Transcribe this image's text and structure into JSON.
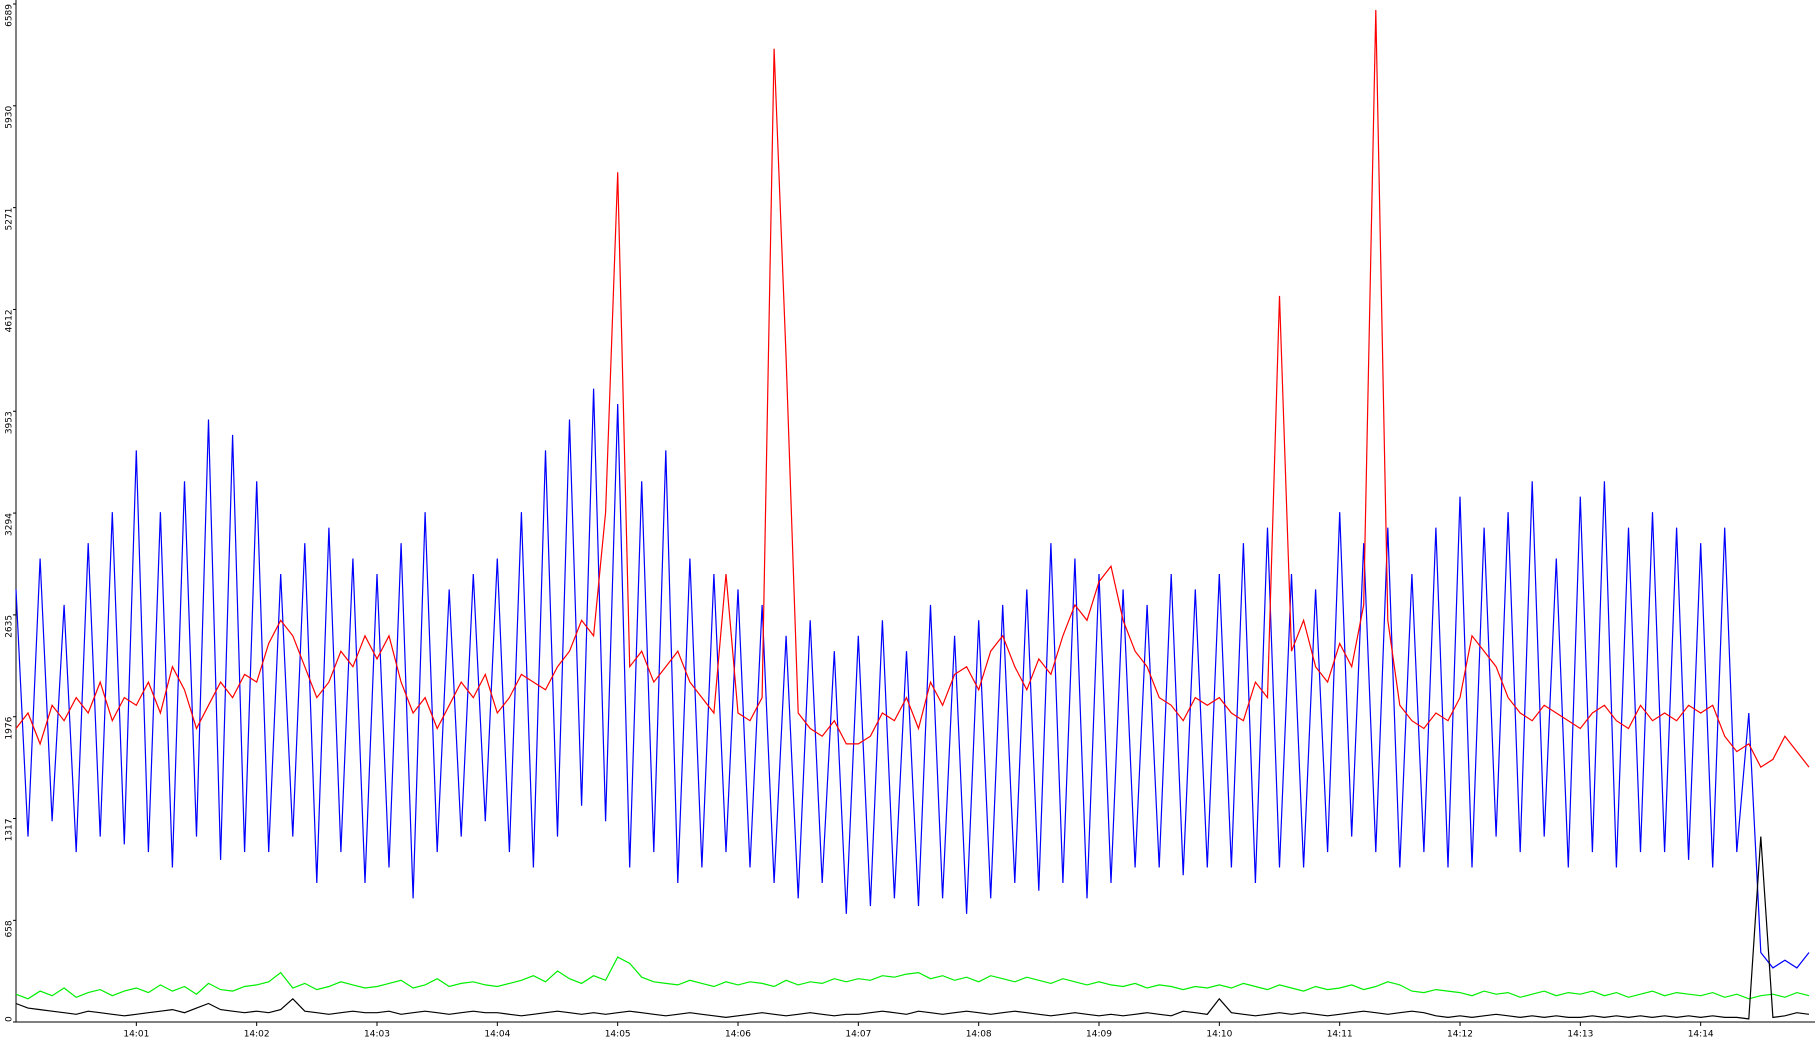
{
  "chart_data": {
    "type": "line",
    "x": [
      0,
      0.1,
      0.2,
      0.3,
      0.4,
      0.5,
      0.6,
      0.7,
      0.8,
      0.9,
      1,
      1.1,
      1.2,
      1.3,
      1.4,
      1.5,
      1.6,
      1.7,
      1.8,
      1.9,
      2,
      2.1,
      2.2,
      2.3,
      2.4,
      2.5,
      2.6,
      2.7,
      2.8,
      2.9,
      3,
      3.1,
      3.2,
      3.3,
      3.4,
      3.5,
      3.6,
      3.7,
      3.8,
      3.9,
      4,
      4.1,
      4.2,
      4.3,
      4.4,
      4.5,
      4.6,
      4.7,
      4.8,
      4.9,
      5,
      5.1,
      5.2,
      5.3,
      5.4,
      5.5,
      5.6,
      5.7,
      5.8,
      5.9,
      6,
      6.1,
      6.2,
      6.3,
      6.4,
      6.5,
      6.6,
      6.7,
      6.8,
      6.9,
      7,
      7.1,
      7.2,
      7.3,
      7.4,
      7.5,
      7.6,
      7.7,
      7.8,
      7.9,
      8,
      8.1,
      8.2,
      8.3,
      8.4,
      8.5,
      8.6,
      8.7,
      8.8,
      8.9,
      9,
      9.1,
      9.2,
      9.3,
      9.4,
      9.5,
      9.6,
      9.7,
      9.8,
      9.9,
      10,
      10.1,
      10.2,
      10.3,
      10.4,
      10.5,
      10.6,
      10.7,
      10.8,
      10.9,
      11,
      11.1,
      11.2,
      11.3,
      11.4,
      11.5,
      11.6,
      11.7,
      11.8,
      11.9,
      12,
      12.1,
      12.2,
      12.3,
      12.4,
      12.5,
      12.6,
      12.7,
      12.8,
      12.9,
      13,
      13.1,
      13.2,
      13.3,
      13.4,
      13.5,
      13.6,
      13.7,
      13.8,
      13.9,
      14,
      14.1,
      14.2,
      14.3,
      14.4,
      14.5,
      14.6,
      14.7,
      14.8,
      14.9
    ],
    "series": [
      {
        "color": "#0000ff",
        "values": [
          2800,
          1200,
          3000,
          1300,
          2700,
          1100,
          3100,
          1200,
          3300,
          1150,
          3700,
          1100,
          3300,
          1000,
          3500,
          1200,
          3900,
          1050,
          3800,
          1100,
          3500,
          1100,
          2900,
          1200,
          3100,
          900,
          3200,
          1100,
          3000,
          900,
          2900,
          1000,
          3100,
          800,
          3300,
          1100,
          2800,
          1200,
          2900,
          1300,
          3000,
          1100,
          3300,
          1000,
          3700,
          1200,
          3900,
          1400,
          4100,
          1300,
          4000,
          1000,
          3500,
          1100,
          3700,
          900,
          3000,
          1000,
          2900,
          1100,
          2800,
          1000,
          2700,
          900,
          2500,
          800,
          2600,
          900,
          2400,
          700,
          2500,
          750,
          2600,
          800,
          2400,
          750,
          2700,
          800,
          2500,
          700,
          2600,
          800,
          2700,
          900,
          2800,
          850,
          3100,
          900,
          3000,
          800,
          2900,
          900,
          2800,
          1000,
          2700,
          1000,
          2900,
          950,
          2800,
          1000,
          2900,
          1000,
          3100,
          900,
          3200,
          1000,
          2900,
          1000,
          2800,
          1100,
          3300,
          1200,
          3100,
          1100,
          3200,
          1000,
          2900,
          1100,
          3200,
          1000,
          3400,
          1000,
          3200,
          1200,
          3300,
          1100,
          3500,
          1200,
          3000,
          1000,
          3400,
          1100,
          3500,
          1000,
          3200,
          1100,
          3300,
          1100,
          3200,
          1050,
          3100,
          1000,
          3200,
          1100,
          2000,
          450,
          350,
          400,
          350,
          450
        ]
      },
      {
        "color": "#ff0000",
        "values": [
          1900,
          2000,
          1800,
          2050,
          1950,
          2100,
          2000,
          2200,
          1950,
          2100,
          2050,
          2200,
          2000,
          2300,
          2150,
          1900,
          2050,
          2200,
          2100,
          2250,
          2200,
          2450,
          2600,
          2500,
          2300,
          2100,
          2200,
          2400,
          2300,
          2500,
          2350,
          2500,
          2200,
          2000,
          2100,
          1900,
          2050,
          2200,
          2100,
          2250,
          2000,
          2100,
          2250,
          2200,
          2150,
          2300,
          2400,
          2600,
          2500,
          3300,
          5500,
          2300,
          2400,
          2200,
          2300,
          2400,
          2200,
          2100,
          2000,
          2900,
          2000,
          1950,
          2100,
          6300,
          4300,
          2000,
          1900,
          1850,
          1950,
          1800,
          1800,
          1850,
          2000,
          1950,
          2100,
          1900,
          2200,
          2050,
          2250,
          2300,
          2150,
          2400,
          2500,
          2300,
          2150,
          2350,
          2250,
          2500,
          2700,
          2600,
          2850,
          2950,
          2600,
          2400,
          2300,
          2100,
          2050,
          1950,
          2100,
          2050,
          2100,
          2000,
          1950,
          2200,
          2100,
          4700,
          2400,
          2600,
          2300,
          2200,
          2450,
          2300,
          2700,
          6550,
          2600,
          2050,
          1950,
          1900,
          2000,
          1950,
          2100,
          2500,
          2400,
          2300,
          2100,
          2000,
          1950,
          2050,
          2000,
          1950,
          1900,
          2000,
          2050,
          1950,
          1900,
          2050,
          1950,
          2000,
          1950,
          2050,
          2000,
          2050,
          1850,
          1750,
          1800,
          1650,
          1700,
          1850,
          1750,
          1650
        ]
      },
      {
        "color": "#00ee00",
        "values": [
          180,
          150,
          200,
          170,
          220,
          160,
          190,
          210,
          170,
          200,
          220,
          190,
          240,
          200,
          230,
          180,
          250,
          210,
          200,
          230,
          240,
          260,
          320,
          220,
          250,
          210,
          230,
          260,
          240,
          220,
          230,
          250,
          270,
          220,
          240,
          280,
          230,
          250,
          260,
          240,
          230,
          250,
          270,
          300,
          260,
          330,
          280,
          250,
          300,
          270,
          420,
          380,
          290,
          260,
          250,
          240,
          270,
          250,
          230,
          260,
          240,
          260,
          250,
          230,
          270,
          240,
          260,
          250,
          280,
          260,
          280,
          270,
          300,
          290,
          310,
          320,
          280,
          300,
          270,
          290,
          260,
          300,
          280,
          260,
          290,
          270,
          250,
          280,
          260,
          240,
          260,
          240,
          230,
          250,
          220,
          240,
          230,
          210,
          230,
          220,
          240,
          220,
          250,
          230,
          210,
          240,
          220,
          200,
          230,
          210,
          220,
          240,
          210,
          230,
          260,
          240,
          200,
          190,
          210,
          200,
          190,
          170,
          200,
          180,
          190,
          160,
          180,
          200,
          170,
          190,
          180,
          200,
          170,
          190,
          160,
          180,
          200,
          170,
          190,
          180,
          170,
          190,
          160,
          180,
          150,
          170,
          180,
          160,
          190,
          170
        ]
      },
      {
        "color": "#000000",
        "values": [
          120,
          90,
          80,
          70,
          60,
          50,
          70,
          60,
          50,
          40,
          50,
          60,
          70,
          80,
          60,
          90,
          120,
          80,
          70,
          60,
          70,
          60,
          80,
          150,
          70,
          60,
          50,
          60,
          70,
          60,
          60,
          70,
          50,
          60,
          70,
          60,
          50,
          60,
          70,
          60,
          60,
          50,
          40,
          50,
          60,
          70,
          60,
          50,
          60,
          50,
          60,
          70,
          60,
          50,
          40,
          50,
          60,
          50,
          40,
          30,
          40,
          50,
          60,
          50,
          40,
          50,
          60,
          50,
          40,
          50,
          50,
          60,
          70,
          60,
          50,
          70,
          60,
          50,
          60,
          70,
          60,
          50,
          60,
          70,
          60,
          50,
          40,
          50,
          60,
          50,
          40,
          50,
          40,
          50,
          60,
          50,
          40,
          70,
          60,
          50,
          150,
          60,
          50,
          40,
          50,
          60,
          50,
          60,
          50,
          40,
          50,
          60,
          70,
          60,
          50,
          60,
          70,
          60,
          40,
          30,
          40,
          30,
          40,
          50,
          40,
          30,
          40,
          30,
          40,
          30,
          30,
          40,
          30,
          40,
          30,
          40,
          30,
          40,
          30,
          40,
          30,
          40,
          30,
          30,
          20,
          1200,
          30,
          40,
          60,
          50
        ]
      }
    ],
    "xlim": [
      0,
      14.95
    ],
    "xticks": [
      {
        "value": 1,
        "label": "14:01"
      },
      {
        "value": 2,
        "label": "14:02"
      },
      {
        "value": 3,
        "label": "14:03"
      },
      {
        "value": 4,
        "label": "14:04"
      },
      {
        "value": 5,
        "label": "14:05"
      },
      {
        "value": 6,
        "label": "14:06"
      },
      {
        "value": 7,
        "label": "14:07"
      },
      {
        "value": 8,
        "label": "14:08"
      },
      {
        "value": 9,
        "label": "14:09"
      },
      {
        "value": 10,
        "label": "14:10"
      },
      {
        "value": 11,
        "label": "14:11"
      },
      {
        "value": 12,
        "label": "14:12"
      },
      {
        "value": 13,
        "label": "14:13"
      },
      {
        "value": 14,
        "label": "14:14"
      }
    ],
    "ylim": [
      0,
      6589
    ],
    "yticks": [
      0,
      658,
      1317,
      1976,
      2635,
      3294,
      3953,
      4612,
      5271,
      5930,
      6589
    ],
    "grid": false
  }
}
